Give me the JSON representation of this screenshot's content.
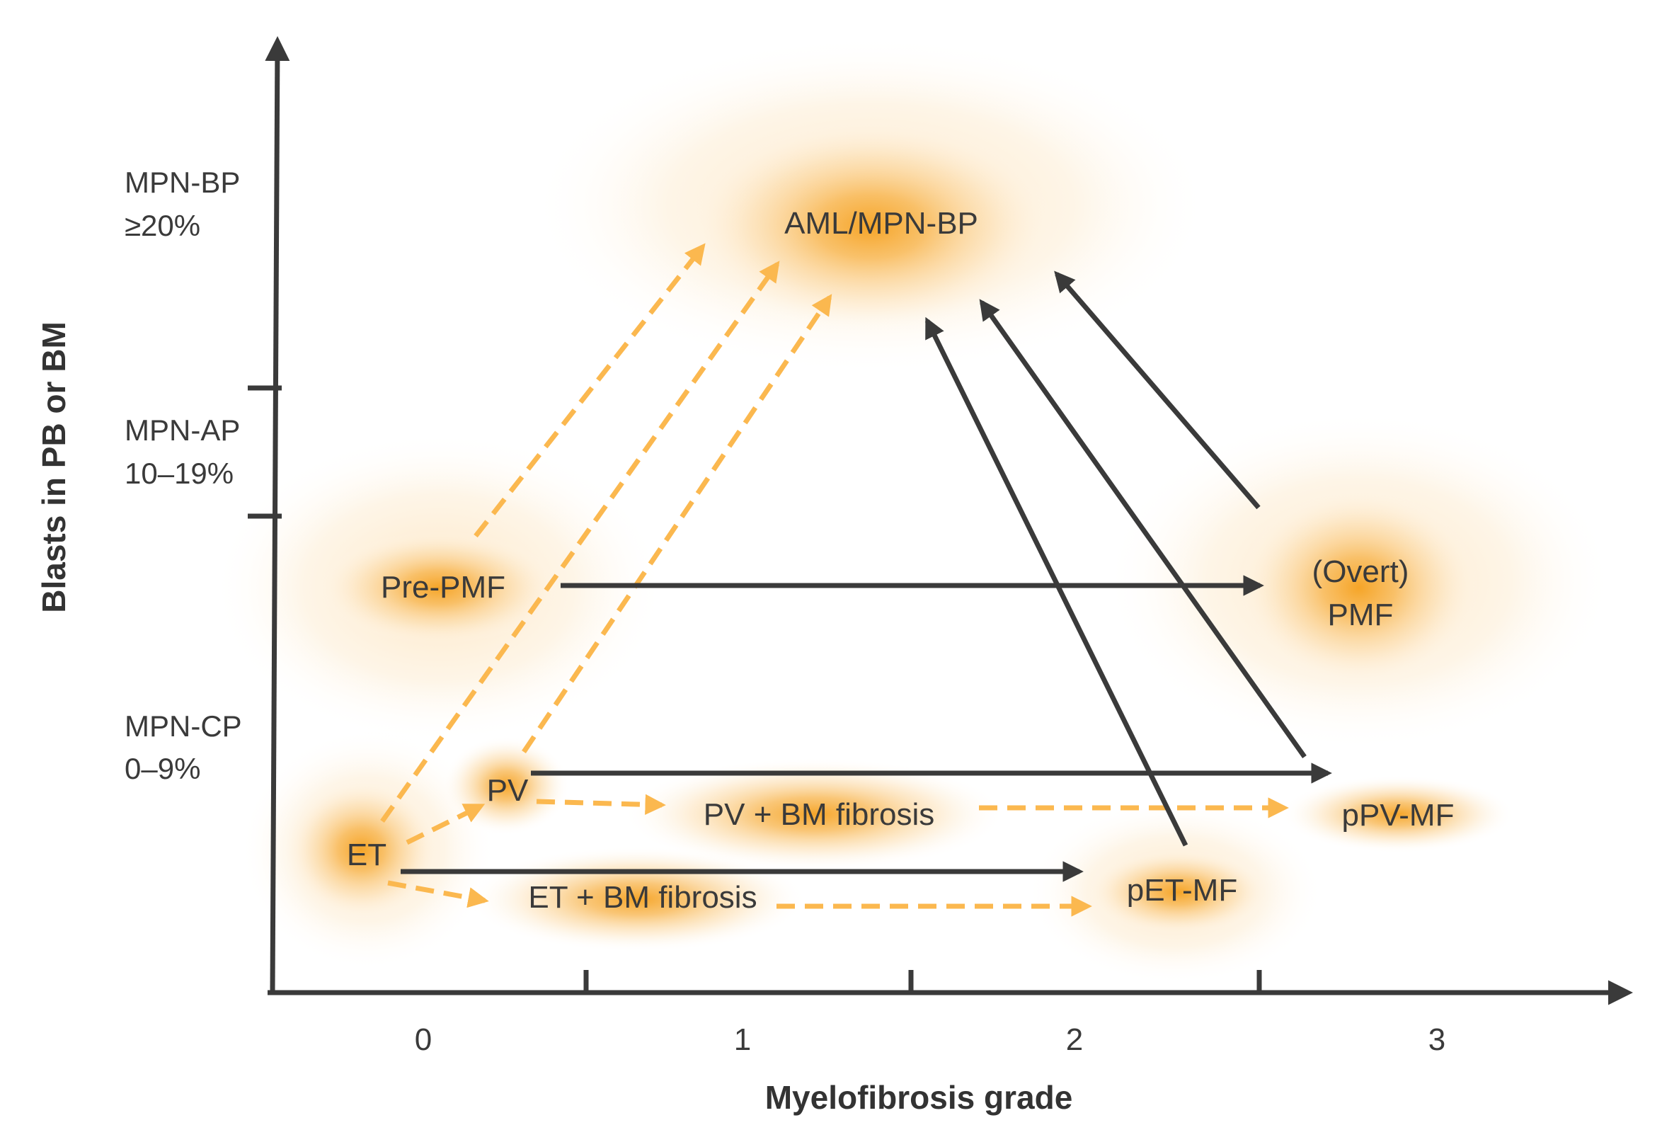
{
  "colors": {
    "axis": "#3a3a3a",
    "glow": "#f5a11f",
    "dashed_arrow": "#fbb84f",
    "solid_arrow": "#3a3a3a",
    "text": "#3a3a3a"
  },
  "axes": {
    "x_title": "Myelofibrosis grade",
    "y_title": "Blasts in PB or BM",
    "x_ticks": [
      "0",
      "1",
      "2",
      "3"
    ]
  },
  "phases": {
    "bp": {
      "name": "MPN-BP",
      "range": "≥20%"
    },
    "ap": {
      "name": "MPN-AP",
      "range": "10–19%"
    },
    "cp": {
      "name": "MPN-CP",
      "range": "0–9%"
    }
  },
  "nodes": {
    "aml": "AML/MPN-BP",
    "prepmf": "Pre-PMF",
    "pmf_line1": "(Overt)",
    "pmf_line2": "PMF",
    "pv": "PV",
    "pv_bm": "PV + BM fibrosis",
    "ppvmf": "pPV-MF",
    "et": "ET",
    "et_bm": "ET + BM fibrosis",
    "petmf": "pET-MF"
  },
  "legend_icons": {
    "dashed": "dashed-arrow-icon",
    "solid": "solid-arrow-icon"
  }
}
